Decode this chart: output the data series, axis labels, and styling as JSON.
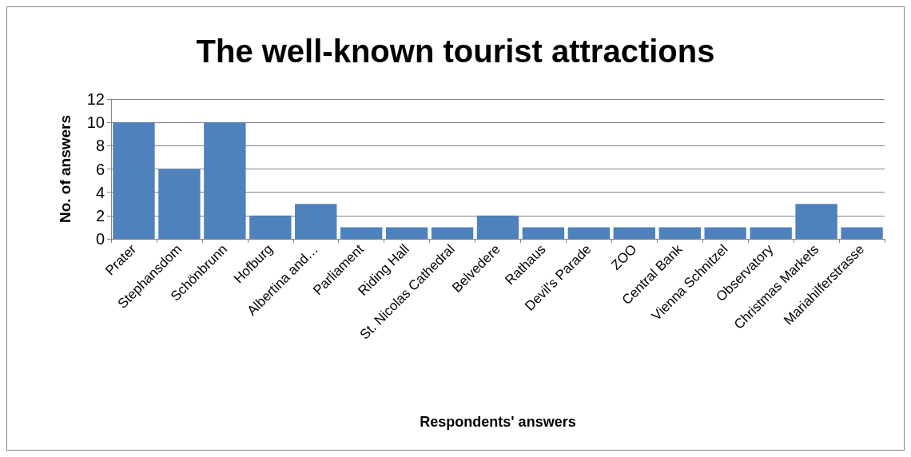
{
  "chart_data": {
    "type": "bar",
    "title": "The well-known tourist attractions",
    "xlabel": "Respondents' answers",
    "ylabel": "No. of answers",
    "categories": [
      "Prater",
      "Stephansdom",
      "Schönbrunn",
      "Hofburg",
      "Albertina and…",
      "Parliament",
      "Riding Hall",
      "St. Nicolas Cathedral",
      "Belvedere",
      "Rathaus",
      "Devil's Parade",
      "ZOO",
      "Central Bank",
      "Vienna Schnitzel",
      "Observatory",
      "Christmas Markets",
      "Mariahilferstrasse"
    ],
    "values": [
      10,
      6,
      10,
      2,
      3,
      1,
      1,
      1,
      2,
      1,
      1,
      1,
      1,
      1,
      1,
      3,
      1
    ],
    "color": "#4f81bd",
    "ylim": [
      0,
      12
    ],
    "yticks": [
      0,
      2,
      4,
      6,
      8,
      10,
      12
    ],
    "grid": "y"
  }
}
